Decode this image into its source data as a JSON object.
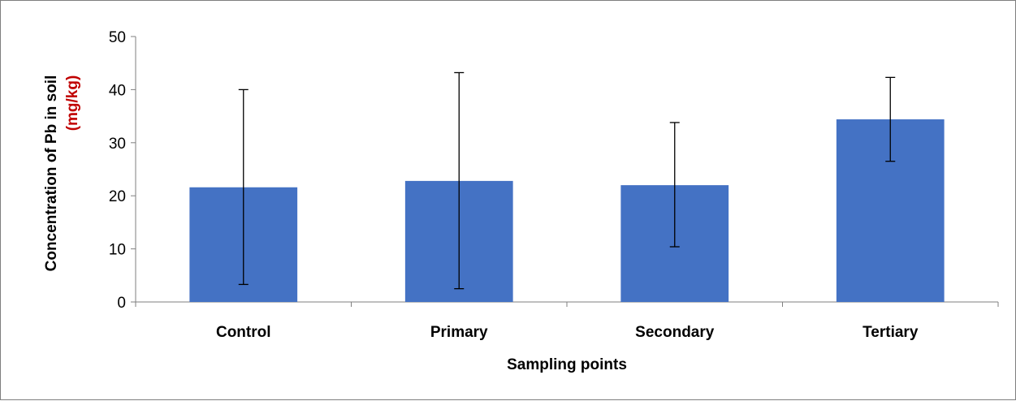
{
  "chart_data": {
    "type": "bar",
    "title": "",
    "categories": [
      "Control",
      "Primary",
      "Secondary",
      "Tertiary"
    ],
    "series": [
      {
        "values": [
          21.6,
          22.8,
          22.0,
          34.4
        ],
        "error_low": [
          3.3,
          2.5,
          10.4,
          26.5
        ],
        "error_high": [
          40.0,
          43.2,
          33.8,
          42.3
        ]
      }
    ],
    "xlabel": "Sampling points",
    "ylabel": "Concentration of  Pb in soil",
    "ylabel_unit": "(mg/kg)",
    "ylim": [
      0,
      50
    ],
    "yticks": [
      0,
      10,
      20,
      30,
      40,
      50
    ],
    "grid": false,
    "legend": "none",
    "colors": {
      "bar": "#4472c4",
      "unit": "#c00000",
      "axis": "#7f7f7f",
      "error_bar": "#000000"
    }
  }
}
